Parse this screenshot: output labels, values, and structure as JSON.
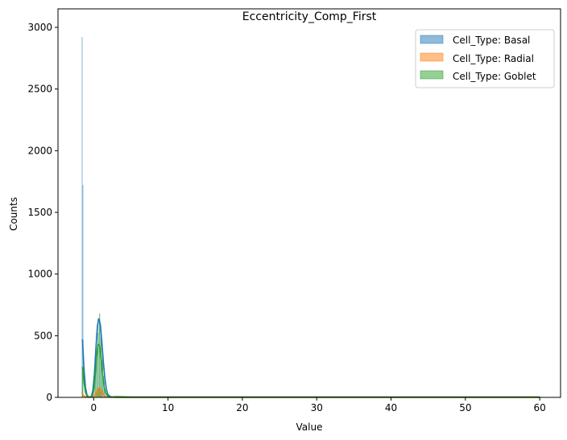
{
  "chart_data": {
    "type": "bar",
    "title": "Eccentricity_Comp_First",
    "xlabel": "Value",
    "ylabel": "Counts",
    "xlim": [
      -4.8,
      62.8
    ],
    "ylim": [
      0,
      3150
    ],
    "xticks": [
      0,
      10,
      20,
      30,
      40,
      50,
      60
    ],
    "yticks": [
      0,
      500,
      1000,
      1500,
      2000,
      2500,
      3000
    ],
    "legend_position": "top-right",
    "grid": false,
    "series": [
      {
        "name": "Cell_Type: Basal",
        "color": "#1f77b4",
        "bars": [
          {
            "x": -1.55,
            "w": 0.1,
            "y": 2920
          },
          {
            "x": -1.45,
            "w": 0.1,
            "y": 1720
          },
          {
            "x": 0.0,
            "w": 0.1,
            "y": 120
          },
          {
            "x": 0.2,
            "w": 0.1,
            "y": 300
          },
          {
            "x": 0.4,
            "w": 0.1,
            "y": 520
          },
          {
            "x": 0.6,
            "w": 0.1,
            "y": 640
          },
          {
            "x": 0.8,
            "w": 0.1,
            "y": 630
          },
          {
            "x": 1.0,
            "w": 0.1,
            "y": 520
          },
          {
            "x": 1.2,
            "w": 0.1,
            "y": 340
          },
          {
            "x": 1.4,
            "w": 0.1,
            "y": 170
          },
          {
            "x": 1.6,
            "w": 0.1,
            "y": 60
          }
        ],
        "kde": {
          "x": [
            -1.5,
            -1.3,
            -1.1,
            -0.9,
            -0.7,
            -0.5,
            -0.3,
            -0.1,
            0.1,
            0.3,
            0.5,
            0.7,
            0.9,
            1.1,
            1.3,
            1.5,
            1.7,
            1.9,
            2.2,
            2.6,
            3.0,
            4.0,
            10,
            20,
            30,
            40,
            50,
            60
          ],
          "y": [
            470,
            230,
            80,
            20,
            5,
            3,
            10,
            60,
            190,
            400,
            580,
            640,
            590,
            450,
            290,
            160,
            70,
            25,
            8,
            3,
            1,
            0,
            0,
            0,
            0,
            0,
            0,
            0
          ]
        }
      },
      {
        "name": "Cell_Type: Radial",
        "color": "#ff7f0e",
        "bars": [
          {
            "x": -1.5,
            "w": 0.1,
            "y": 60
          },
          {
            "x": 0.4,
            "w": 0.2,
            "y": 40
          },
          {
            "x": 0.6,
            "w": 0.2,
            "y": 70
          },
          {
            "x": 0.8,
            "w": 0.2,
            "y": 75
          },
          {
            "x": 1.0,
            "w": 0.2,
            "y": 50
          }
        ],
        "kde": {
          "x": [
            -1.5,
            -1.3,
            -1.1,
            -0.8,
            -0.5,
            -0.2,
            0.1,
            0.3,
            0.5,
            0.7,
            0.9,
            1.1,
            1.3,
            1.5,
            1.8,
            2.2,
            3.0,
            10,
            30,
            60
          ],
          "y": [
            25,
            12,
            4,
            1,
            1,
            4,
            15,
            35,
            60,
            74,
            70,
            48,
            25,
            10,
            3,
            1,
            0,
            0,
            0,
            0
          ]
        }
      },
      {
        "name": "Cell_Type: Goblet",
        "color": "#2ca02c",
        "bars": [
          {
            "x": -1.5,
            "w": 0.1,
            "y": 250
          },
          {
            "x": 0.2,
            "w": 0.1,
            "y": 180
          },
          {
            "x": 0.4,
            "w": 0.1,
            "y": 380
          },
          {
            "x": 0.6,
            "w": 0.1,
            "y": 520
          },
          {
            "x": 0.8,
            "w": 0.1,
            "y": 680
          },
          {
            "x": 1.0,
            "w": 0.1,
            "y": 480
          },
          {
            "x": 1.2,
            "w": 0.1,
            "y": 300
          },
          {
            "x": 1.4,
            "w": 0.1,
            "y": 120
          }
        ],
        "kde": {
          "x": [
            -1.5,
            -1.3,
            -1.1,
            -0.9,
            -0.7,
            -0.5,
            -0.2,
            0.0,
            0.2,
            0.4,
            0.6,
            0.8,
            1.0,
            1.2,
            1.4,
            1.6,
            1.9,
            2.3,
            3.0,
            5,
            10,
            20,
            30,
            40,
            50,
            60
          ],
          "y": [
            245,
            120,
            40,
            10,
            3,
            2,
            10,
            60,
            170,
            330,
            430,
            420,
            320,
            190,
            90,
            35,
            10,
            3,
            6,
            4,
            4,
            4,
            4,
            4,
            4,
            4
          ]
        }
      }
    ]
  }
}
